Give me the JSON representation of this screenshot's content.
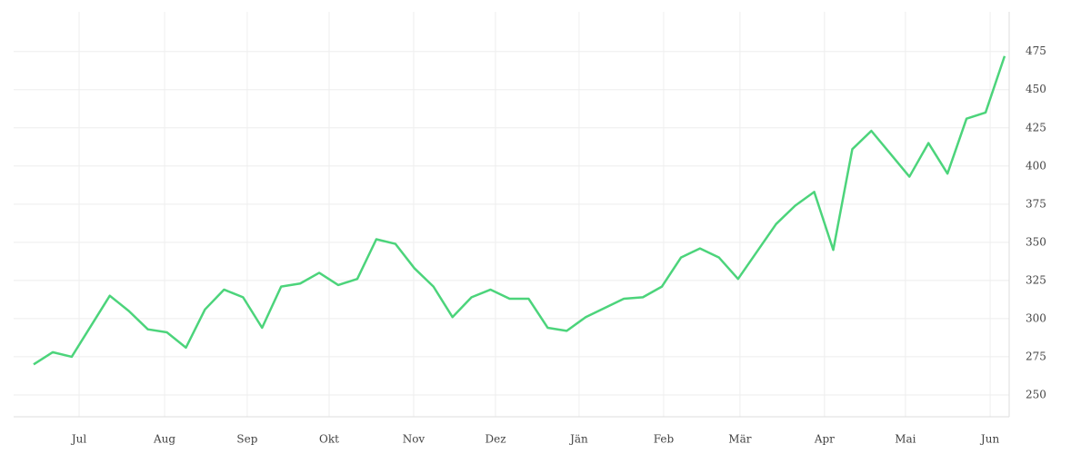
{
  "chart_data": {
    "type": "line",
    "values": [
      270,
      278,
      275,
      295,
      315,
      305,
      293,
      291,
      281,
      306,
      319,
      314,
      294,
      321,
      323,
      330,
      322,
      326,
      352,
      349,
      333,
      321,
      301,
      314,
      319,
      313,
      313,
      294,
      292,
      301,
      307,
      313,
      314,
      321,
      340,
      346,
      340,
      326,
      344,
      362,
      374,
      383,
      345,
      411,
      423,
      408,
      393,
      415,
      395,
      431,
      435,
      472
    ],
    "color": "#4cd47b",
    "xlim": [
      -1.05,
      51.24
    ],
    "xticks": [
      {
        "value": 2.39,
        "label": "Jul"
      },
      {
        "value": 6.88,
        "label": "Aug"
      },
      {
        "value": 11.22,
        "label": "Sep"
      },
      {
        "value": 15.52,
        "label": "Okt"
      },
      {
        "value": 19.96,
        "label": "Nov"
      },
      {
        "value": 24.26,
        "label": "Dez"
      },
      {
        "value": 28.65,
        "label": "Jän"
      },
      {
        "value": 33.09,
        "label": "Feb"
      },
      {
        "value": 37.1,
        "label": "Mär"
      },
      {
        "value": 41.54,
        "label": "Apr"
      },
      {
        "value": 45.79,
        "label": "Mai"
      },
      {
        "value": 50.24,
        "label": "Jun"
      }
    ],
    "ylim": [
      235.7,
      501
    ],
    "yticks": [
      250,
      275,
      300,
      325,
      350,
      375,
      400,
      425,
      450,
      475
    ],
    "grid": true
  }
}
